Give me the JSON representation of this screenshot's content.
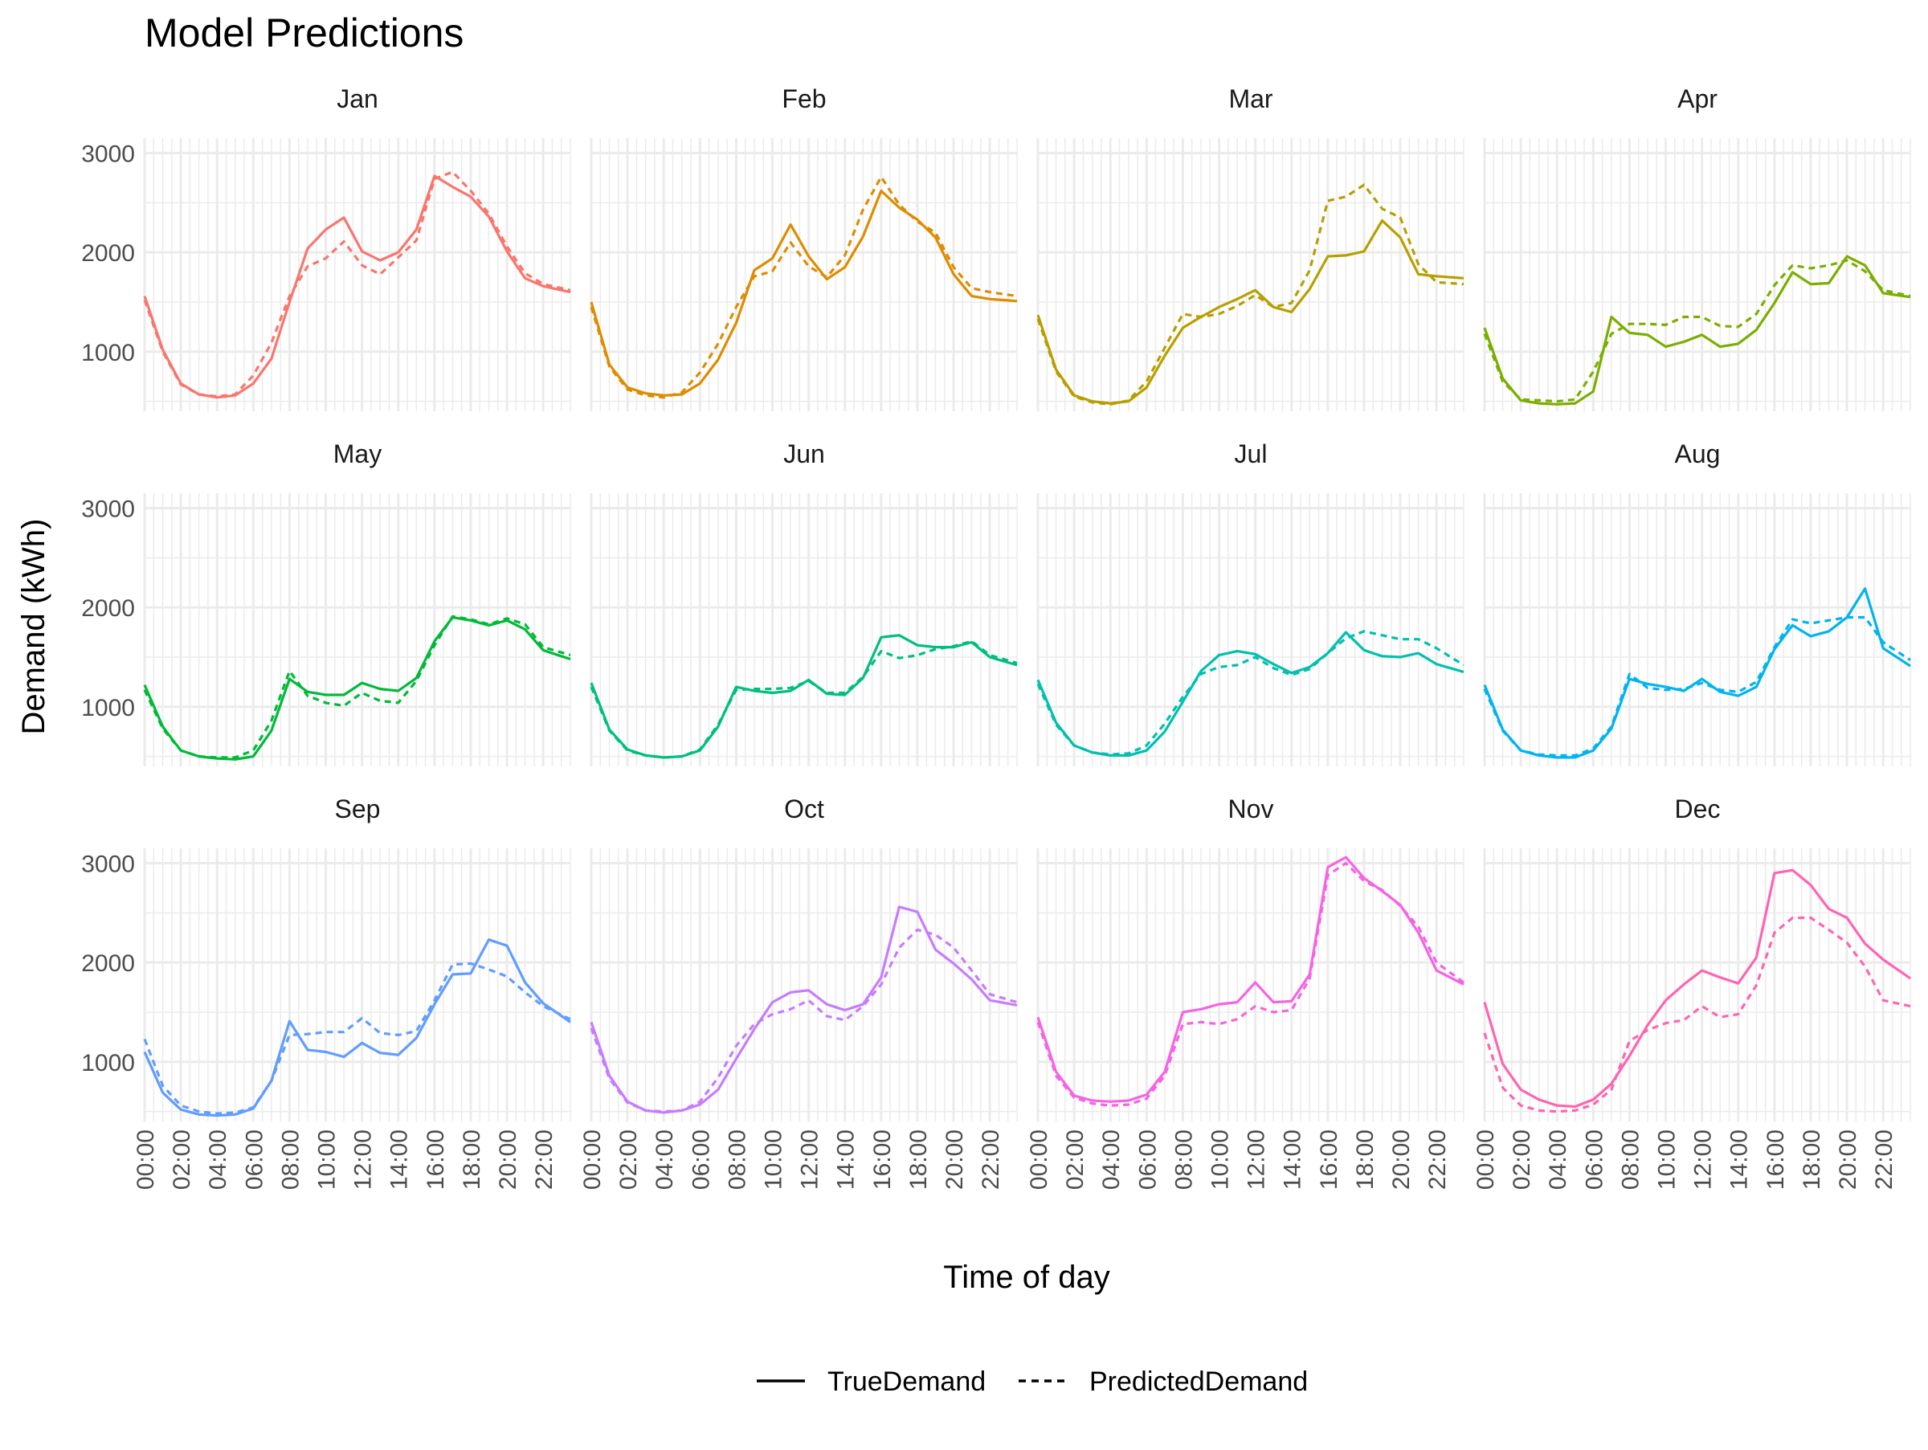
{
  "chart_data": {
    "type": "line",
    "title": "Model Predictions",
    "xlabel": "Time of day",
    "ylabel": "Demand (kWh)",
    "ylim": [
      400,
      3150
    ],
    "y_ticks": [
      1000,
      2000,
      3000
    ],
    "x_tick_labels": [
      "00:00",
      "02:00",
      "04:00",
      "06:00",
      "08:00",
      "10:00",
      "12:00",
      "14:00",
      "16:00",
      "18:00",
      "20:00",
      "22:00"
    ],
    "x_unit": "hour of day",
    "xlim": [
      0,
      23.5
    ],
    "grid": true,
    "legend_position": "bottom",
    "legend": [
      {
        "label": "TrueDemand",
        "style": "solid"
      },
      {
        "label": "PredictedDemand",
        "style": "dashed"
      }
    ],
    "layout": {
      "rows": 3,
      "cols": 4
    },
    "x_knots": [
      0,
      1,
      2,
      3,
      4,
      5,
      6,
      7,
      8,
      9,
      10,
      11,
      12,
      13,
      14,
      15,
      16,
      17,
      18,
      19,
      20,
      21,
      22,
      23.5
    ],
    "facets": [
      {
        "label": "Jan",
        "color": "#F8766D",
        "true": [
          1560,
          1020,
          680,
          570,
          540,
          560,
          680,
          930,
          1500,
          2040,
          2230,
          2350,
          2010,
          1920,
          2000,
          2230,
          2770,
          2660,
          2560,
          2360,
          2010,
          1740,
          1660,
          1600
        ],
        "predicted": [
          1520,
          1000,
          670,
          570,
          550,
          570,
          760,
          1090,
          1560,
          1860,
          1940,
          2110,
          1870,
          1780,
          1950,
          2120,
          2740,
          2810,
          2620,
          2390,
          2060,
          1790,
          1680,
          1620
        ]
      },
      {
        "label": "Feb",
        "color": "#DE8C00",
        "true": [
          1500,
          870,
          640,
          580,
          560,
          570,
          680,
          920,
          1290,
          1820,
          1940,
          2280,
          1960,
          1730,
          1850,
          2160,
          2620,
          2450,
          2330,
          2150,
          1780,
          1560,
          1530,
          1510
        ],
        "predicted": [
          1450,
          850,
          620,
          560,
          540,
          590,
          790,
          1080,
          1450,
          1760,
          1810,
          2100,
          1860,
          1750,
          1970,
          2430,
          2760,
          2480,
          2310,
          2200,
          1850,
          1640,
          1600,
          1560
        ],
        "override_tail": true
      },
      {
        "label": "Mar",
        "color": "#B79F00",
        "true": [
          1370,
          820,
          560,
          500,
          480,
          500,
          640,
          960,
          1240,
          1350,
          1450,
          1530,
          1620,
          1450,
          1400,
          1630,
          1960,
          1970,
          2010,
          2320,
          2150,
          1780,
          1760,
          1740
        ],
        "predicted": [
          1330,
          800,
          550,
          490,
          470,
          510,
          700,
          1040,
          1380,
          1350,
          1380,
          1460,
          1570,
          1450,
          1490,
          1820,
          2520,
          2560,
          2680,
          2440,
          2350,
          1880,
          1700,
          1680
        ]
      },
      {
        "label": "Apr",
        "color": "#7CAE00",
        "true": [
          1240,
          730,
          510,
          480,
          470,
          480,
          600,
          1350,
          1190,
          1170,
          1050,
          1100,
          1170,
          1050,
          1080,
          1220,
          1490,
          1800,
          1680,
          1690,
          1960,
          1870,
          1590,
          1550
        ],
        "predicted": [
          1180,
          700,
          520,
          510,
          500,
          520,
          800,
          1180,
          1280,
          1280,
          1270,
          1350,
          1350,
          1260,
          1250,
          1380,
          1670,
          1870,
          1840,
          1870,
          1920,
          1810,
          1620,
          1560
        ]
      },
      {
        "label": "May",
        "color": "#00BA38",
        "true": [
          1220,
          800,
          560,
          500,
          480,
          470,
          500,
          760,
          1280,
          1150,
          1120,
          1120,
          1240,
          1180,
          1160,
          1290,
          1660,
          1900,
          1870,
          1820,
          1870,
          1780,
          1570,
          1480
        ],
        "predicted": [
          1170,
          780,
          560,
          500,
          490,
          490,
          560,
          860,
          1360,
          1110,
          1040,
          1010,
          1140,
          1060,
          1040,
          1260,
          1620,
          1910,
          1880,
          1830,
          1890,
          1830,
          1600,
          1520
        ]
      },
      {
        "label": "Jun",
        "color": "#00BF7D",
        "true": [
          1240,
          770,
          570,
          510,
          490,
          500,
          560,
          800,
          1200,
          1160,
          1140,
          1160,
          1270,
          1130,
          1120,
          1290,
          1700,
          1720,
          1620,
          1600,
          1600,
          1650,
          1500,
          1420
        ],
        "predicted": [
          1200,
          760,
          560,
          510,
          490,
          500,
          570,
          820,
          1170,
          1180,
          1180,
          1190,
          1260,
          1140,
          1140,
          1300,
          1560,
          1490,
          1520,
          1580,
          1610,
          1660,
          1520,
          1440
        ]
      },
      {
        "label": "Jul",
        "color": "#00C0AF",
        "true": [
          1270,
          840,
          610,
          540,
          510,
          510,
          560,
          750,
          1050,
          1360,
          1520,
          1560,
          1530,
          1430,
          1340,
          1400,
          1540,
          1750,
          1570,
          1510,
          1500,
          1540,
          1430,
          1350
        ],
        "predicted": [
          1230,
          820,
          610,
          540,
          520,
          530,
          610,
          830,
          1100,
          1330,
          1400,
          1420,
          1500,
          1390,
          1320,
          1380,
          1540,
          1690,
          1760,
          1720,
          1680,
          1680,
          1590,
          1420
        ]
      },
      {
        "label": "Aug",
        "color": "#00B4EF",
        "true": [
          1220,
          770,
          560,
          510,
          490,
          490,
          560,
          780,
          1280,
          1230,
          1200,
          1160,
          1280,
          1150,
          1110,
          1200,
          1580,
          1820,
          1710,
          1760,
          1900,
          2190,
          1590,
          1410
        ],
        "predicted": [
          1180,
          760,
          560,
          520,
          510,
          510,
          580,
          800,
          1330,
          1190,
          1170,
          1180,
          1240,
          1170,
          1150,
          1250,
          1600,
          1880,
          1840,
          1870,
          1900,
          1900,
          1650,
          1470
        ]
      },
      {
        "label": "Sep",
        "color": "#619CFF",
        "true": [
          1100,
          690,
          520,
          470,
          460,
          470,
          530,
          810,
          1410,
          1120,
          1100,
          1050,
          1190,
          1090,
          1070,
          1240,
          1580,
          1880,
          1890,
          2230,
          2170,
          1800,
          1590,
          1400
        ],
        "predicted": [
          1230,
          760,
          560,
          500,
          480,
          490,
          540,
          810,
          1270,
          1280,
          1300,
          1300,
          1440,
          1290,
          1270,
          1310,
          1620,
          1980,
          1990,
          1930,
          1860,
          1700,
          1560,
          1430
        ]
      },
      {
        "label": "Oct",
        "color": "#C77CFF",
        "true": [
          1400,
          860,
          600,
          510,
          490,
          510,
          570,
          720,
          1030,
          1330,
          1600,
          1700,
          1720,
          1580,
          1520,
          1580,
          1850,
          2560,
          2510,
          2130,
          1990,
          1830,
          1620,
          1570
        ],
        "predicted": [
          1340,
          830,
          590,
          510,
          500,
          510,
          600,
          840,
          1160,
          1380,
          1480,
          1530,
          1620,
          1460,
          1420,
          1560,
          1780,
          2150,
          2330,
          2280,
          2150,
          1920,
          1680,
          1600
        ]
      },
      {
        "label": "Nov",
        "color": "#F564E3",
        "true": [
          1450,
          900,
          660,
          610,
          600,
          610,
          670,
          900,
          1500,
          1530,
          1580,
          1600,
          1800,
          1600,
          1610,
          1880,
          2960,
          3060,
          2850,
          2720,
          2580,
          2300,
          1920,
          1780
        ],
        "predicted": [
          1400,
          860,
          640,
          580,
          560,
          570,
          630,
          860,
          1380,
          1400,
          1380,
          1430,
          1560,
          1500,
          1520,
          1840,
          2880,
          3000,
          2820,
          2730,
          2570,
          2360,
          2000,
          1800
        ]
      },
      {
        "label": "Dec",
        "color": "#FF64B0",
        "true": [
          1600,
          980,
          720,
          620,
          560,
          550,
          620,
          780,
          1060,
          1370,
          1620,
          1780,
          1920,
          1850,
          1790,
          2050,
          2900,
          2930,
          2780,
          2540,
          2450,
          2190,
          2030,
          1840
        ],
        "predicted": [
          1290,
          740,
          560,
          510,
          500,
          510,
          570,
          720,
          1210,
          1320,
          1390,
          1420,
          1560,
          1450,
          1480,
          1770,
          2300,
          2450,
          2450,
          2330,
          2200,
          1960,
          1620,
          1560
        ]
      }
    ]
  }
}
